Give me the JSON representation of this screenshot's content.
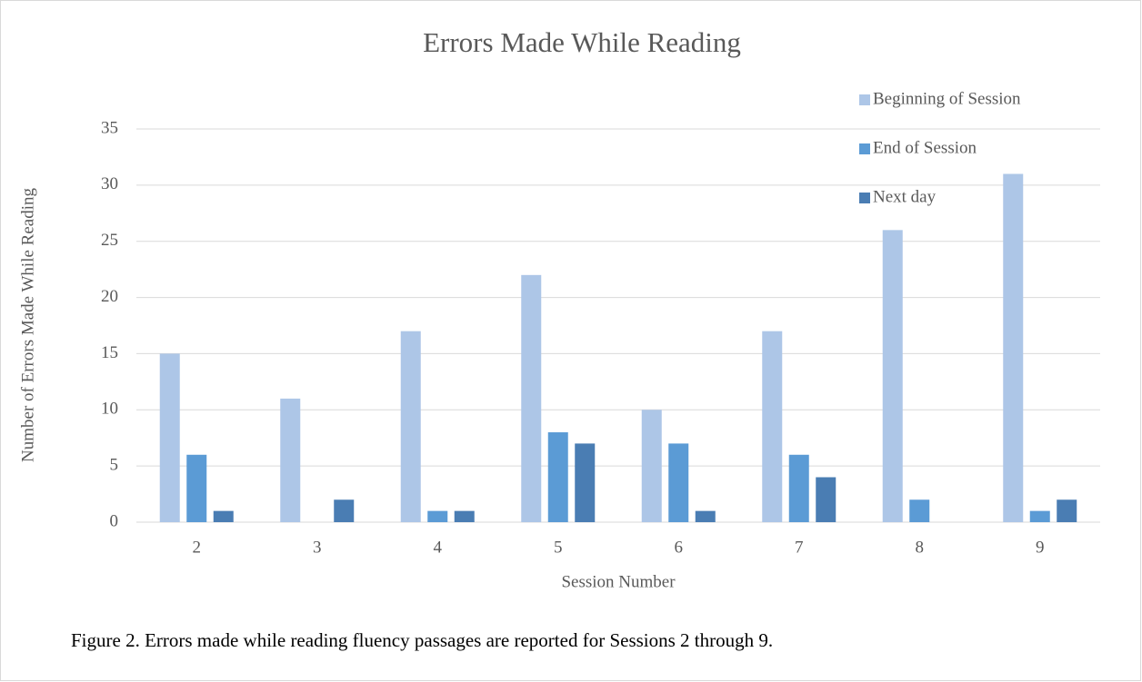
{
  "chart_data": {
    "type": "bar",
    "title": "Errors Made While Reading",
    "x_label": "Session Number",
    "y_label": "Number of Errors Made While Reading",
    "caption": "Figure 2. Errors made while reading fluency passages are reported for Sessions 2 through 9.",
    "categories": [
      "2",
      "3",
      "4",
      "5",
      "6",
      "7",
      "8",
      "9"
    ],
    "series": [
      {
        "name": "Beginning of Session",
        "color": "#adc6e7",
        "values": [
          15,
          11,
          17,
          22,
          10,
          17,
          26,
          31
        ]
      },
      {
        "name": "End of Session",
        "color": "#5b9bd5",
        "values": [
          6,
          0,
          1,
          8,
          7,
          6,
          2,
          1
        ]
      },
      {
        "name": "Next day",
        "color": "#4a7db3",
        "values": [
          1,
          2,
          1,
          7,
          1,
          4,
          0,
          2
        ]
      }
    ],
    "ylim": [
      0,
      35
    ],
    "yticks": [
      0,
      5,
      10,
      15,
      20,
      25,
      30,
      35
    ],
    "grid": true
  }
}
